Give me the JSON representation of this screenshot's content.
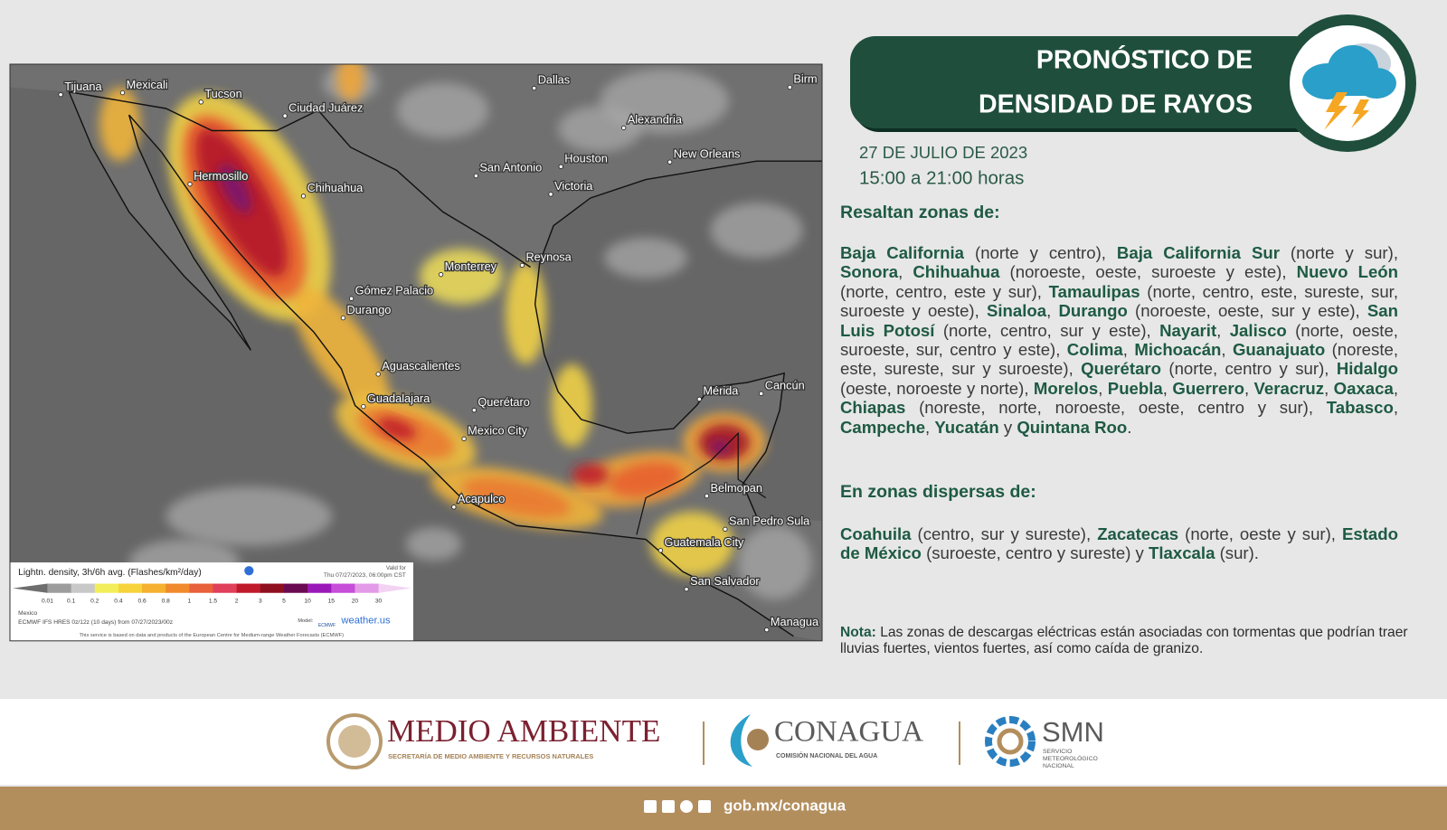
{
  "header": {
    "title": [
      "PRONÓSTICO DE",
      "DENSIDAD DE RAYOS"
    ],
    "date": "27 DE JULIO DE 2023",
    "time": "15:00 a 21:00 horas"
  },
  "map": {
    "cities": [
      "Tijuana",
      "Mexicali",
      "Tucson",
      "Ciudad Juárez",
      "Dallas",
      "Birm",
      "Alexandria",
      "Houston",
      "New Orleans",
      "San Antonio",
      "Victoria",
      "Hermosillo",
      "Chihuahua",
      "Reynosa",
      "Monterrey",
      "Gómez Palacio",
      "Durango",
      "Aguascalientes",
      "Guadalajara",
      "Querétaro",
      "Mexico City",
      "Mérida",
      "Cancún",
      "Belmopan",
      "Acapulco",
      "San Pedro Sula",
      "Guatemala City",
      "San Salvador",
      "Managua"
    ],
    "legend": {
      "title": "Lightn. density, 3h/6h avg. (Flashes/km²/day)",
      "valid": [
        "Valid for",
        "Thu 07/27/2023, 06:00pm CST"
      ],
      "ticks": [
        0.01,
        0.1,
        0.2,
        0.4,
        0.6,
        0.8,
        1,
        1.5,
        2,
        3,
        5,
        10,
        15,
        20,
        30
      ],
      "colors": [
        "#6e6e6e",
        "#9c9c9c",
        "#c8c8c8",
        "#f2ee5a",
        "#f6d33a",
        "#f5b12f",
        "#f08a2c",
        "#e8613a",
        "#e0405a",
        "#c01a2a",
        "#8e0f1e",
        "#6a0a50",
        "#9a18b8",
        "#c64ed8",
        "#e39ae8",
        "#f3d3f3"
      ],
      "region": "Mexico",
      "model_run": "ECMWF IFS HRES 0z/12z (10 days) from 07/27/2023/00z",
      "model_label": "Model:",
      "model": "ECMWF",
      "provider": "weather.us",
      "credit": "This service is based on data and products of the European Centre for Medium-range Weather Forecasts (ECMWF)"
    }
  },
  "highlights": {
    "heading": "Resaltan zonas de:",
    "segments": [
      {
        "text": "Baja California",
        "strong": true
      },
      {
        "text": " (norte y centro), "
      },
      {
        "text": "Baja California Sur",
        "strong": true
      },
      {
        "text": " (norte y sur), "
      },
      {
        "text": "Sonora",
        "strong": true
      },
      {
        "text": ",  "
      },
      {
        "text": "Chihuahua",
        "strong": true
      },
      {
        "text": " (noroeste, oeste, suroeste y este), "
      },
      {
        "text": "Nuevo León",
        "strong": true
      },
      {
        "text": " (norte, centro, este y sur), "
      },
      {
        "text": "Tamaulipas",
        "strong": true
      },
      {
        "text": " (norte, centro, este, sureste, sur, suroeste y oeste), "
      },
      {
        "text": "Sinaloa",
        "strong": true
      },
      {
        "text": ", "
      },
      {
        "text": "Durango",
        "strong": true
      },
      {
        "text": " (noroeste, oeste, sur y este), "
      },
      {
        "text": "San Luis Potosí",
        "strong": true
      },
      {
        "text": " (norte, centro, sur y este), "
      },
      {
        "text": "Nayarit",
        "strong": true
      },
      {
        "text": ", "
      },
      {
        "text": "Jalisco",
        "strong": true
      },
      {
        "text": " (norte, oeste, suroeste, sur, centro y este), "
      },
      {
        "text": "Colima",
        "strong": true
      },
      {
        "text": ", "
      },
      {
        "text": "Michoacán",
        "strong": true
      },
      {
        "text": ", "
      },
      {
        "text": "Guanajuato",
        "strong": true
      },
      {
        "text": " (noreste, este, sureste, sur y suroeste), "
      },
      {
        "text": "Querétaro",
        "strong": true
      },
      {
        "text": " (norte, centro y sur), "
      },
      {
        "text": "Hidalgo",
        "strong": true
      },
      {
        "text": " (oeste, noroeste y norte), "
      },
      {
        "text": "Morelos",
        "strong": true
      },
      {
        "text": ", "
      },
      {
        "text": "Puebla",
        "strong": true
      },
      {
        "text": ", "
      },
      {
        "text": "Guerrero",
        "strong": true
      },
      {
        "text": ", "
      },
      {
        "text": "Veracruz",
        "strong": true
      },
      {
        "text": ", "
      },
      {
        "text": "Oaxaca",
        "strong": true
      },
      {
        "text": ", "
      },
      {
        "text": "Chiapas",
        "strong": true
      },
      {
        "text": " (noreste, norte, noroeste, oeste, centro y sur), "
      },
      {
        "text": "Tabasco",
        "strong": true
      },
      {
        "text": ", "
      },
      {
        "text": "Campeche",
        "strong": true
      },
      {
        "text": ", "
      },
      {
        "text": "Yucatán",
        "strong": true
      },
      {
        "text": " y "
      },
      {
        "text": "Quintana Roo",
        "strong": true
      },
      {
        "text": "."
      }
    ]
  },
  "scattered": {
    "heading": "En zonas dispersas de:",
    "segments": [
      {
        "text": "Coahuila",
        "strong": true
      },
      {
        "text": " (centro, sur y sureste), "
      },
      {
        "text": "Zacatecas",
        "strong": true
      },
      {
        "text": " (norte, oeste y sur), "
      },
      {
        "text": "Estado de México",
        "strong": true
      },
      {
        "text": " (suroeste, centro y sureste) y "
      },
      {
        "text": "Tlaxcala",
        "strong": true
      },
      {
        "text": " (sur)."
      }
    ]
  },
  "note": {
    "segments": [
      {
        "text": "Nota:",
        "strong": true
      },
      {
        "text": " Las zonas de descargas eléctricas están asociadas con tormentas que podrían traer lluvias fuertes, vientos fuertes, así como caída de granizo."
      }
    ]
  },
  "footer": {
    "logos": [
      {
        "name": "MEDIO AMBIENTE",
        "subtitle": [
          "SECRETARÍA DE MEDIO AMBIENTE Y RECURSOS NATURALES"
        ]
      },
      {
        "name": "CONAGUA",
        "subtitle": [
          "COMISIÓN NACIONAL DEL AGUA"
        ]
      },
      {
        "name": "SMN",
        "subtitle": [
          "SERVICIO",
          "METEOROLÓGICO",
          "NACIONAL"
        ]
      }
    ],
    "url": "gob.mx/conagua"
  }
}
